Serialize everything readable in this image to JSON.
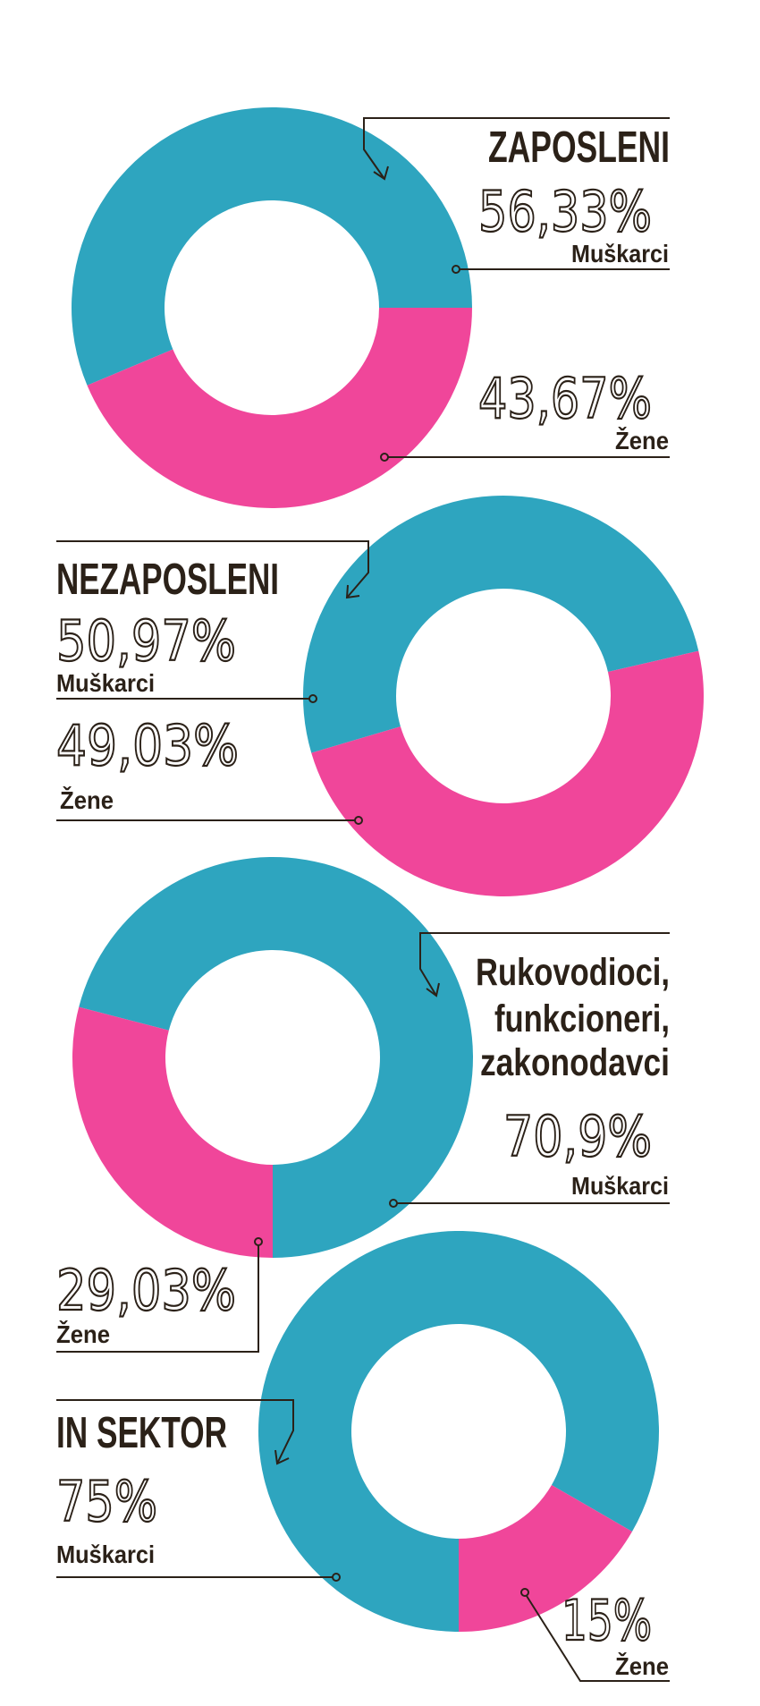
{
  "colors": {
    "men": "#2ea5bf",
    "women": "#f0469a",
    "text": "#2b2118"
  },
  "chart_data": [
    {
      "type": "pie",
      "title": "ZAPOSLENI",
      "categories": [
        "Muškarci",
        "Žene"
      ],
      "values": [
        56.33,
        43.67
      ],
      "value_labels": [
        "56,33%",
        "43,67%"
      ]
    },
    {
      "type": "pie",
      "title": "NEZAPOSLENI",
      "categories": [
        "Muškarci",
        "Žene"
      ],
      "values": [
        50.97,
        49.03
      ],
      "value_labels": [
        "50,97%",
        "49,03%"
      ]
    },
    {
      "type": "pie",
      "title_lines": [
        "Rukovodioci,",
        "funkcioneri,",
        "zakonodavci"
      ],
      "categories": [
        "Muškarci",
        "Žene"
      ],
      "values": [
        70.9,
        29.03
      ],
      "value_labels": [
        "70,9%",
        "29,03%"
      ]
    },
    {
      "type": "pie",
      "title": "IN SEKTOR",
      "categories": [
        "Muškarci",
        "Žene"
      ],
      "values": [
        75,
        15
      ],
      "value_labels": [
        "75%",
        "15%"
      ]
    }
  ]
}
